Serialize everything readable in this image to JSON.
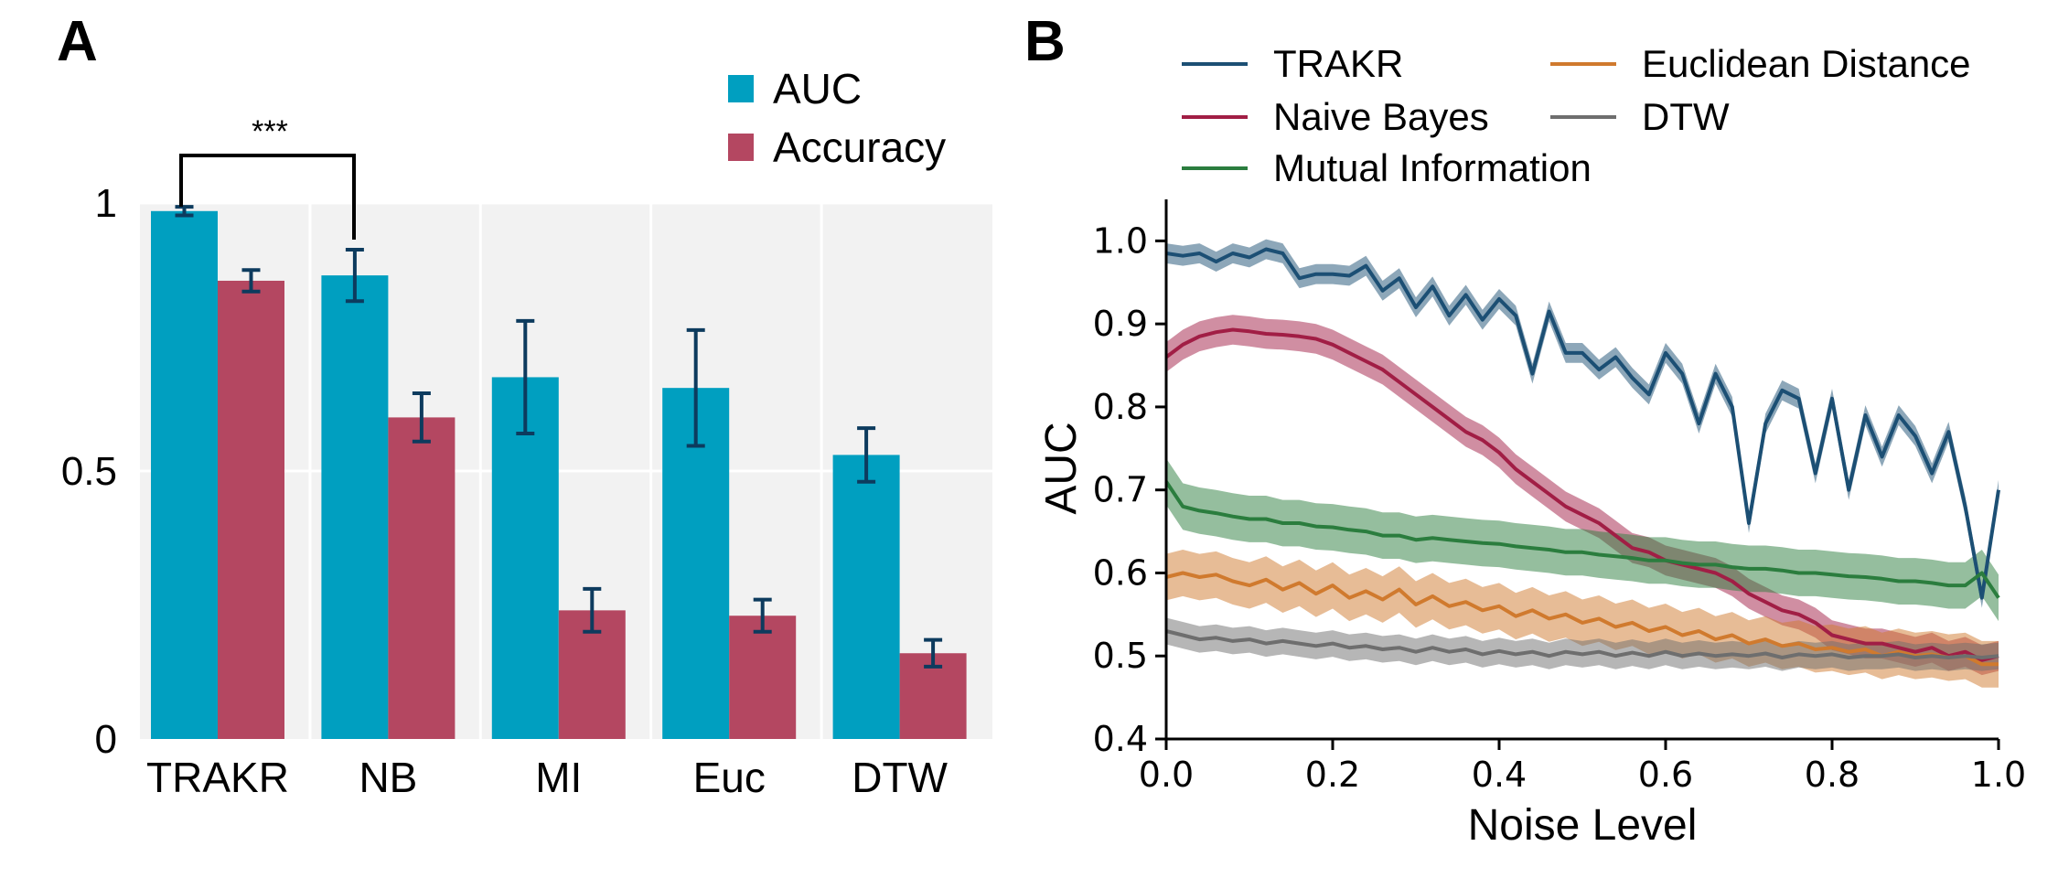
{
  "panels": {
    "a_label": "A",
    "b_label": "B"
  },
  "chart_data": [
    {
      "type": "bar",
      "categories": [
        "TRAKR",
        "NB",
        "MI",
        "Euc",
        "DTW"
      ],
      "series": [
        {
          "name": "AUC",
          "color": "#009fc0",
          "values": [
            0.985,
            0.865,
            0.675,
            0.655,
            0.53
          ],
          "err": [
            0.008,
            0.048,
            0.105,
            0.108,
            0.05
          ]
        },
        {
          "name": "Accuracy",
          "color": "#b44761",
          "values": [
            0.855,
            0.6,
            0.24,
            0.23,
            0.16
          ],
          "err": [
            0.02,
            0.045,
            0.04,
            0.03,
            0.025
          ]
        }
      ],
      "yticks": [
        "0",
        "0.5",
        "1"
      ],
      "ylim": [
        0,
        1
      ],
      "grid": true,
      "legend": "top-right",
      "annotation": "***",
      "error_color": "#0d3b5e"
    },
    {
      "type": "line",
      "xlabel": "Noise Level",
      "ylabel": "AUC",
      "xlim": [
        0,
        1
      ],
      "ylim": [
        0.4,
        1.05
      ],
      "xticks": [
        "0.0",
        "0.2",
        "0.4",
        "0.6",
        "0.8",
        "1.0"
      ],
      "yticks": [
        "0.4",
        "0.5",
        "0.6",
        "0.7",
        "0.8",
        "0.9",
        "1.0"
      ],
      "legend": "top",
      "series": [
        {
          "name": "TRAKR",
          "color": "#1c4f74",
          "band": 0.012,
          "x": [
            0,
            0.02,
            0.04,
            0.06,
            0.08,
            0.1,
            0.12,
            0.14,
            0.16,
            0.18,
            0.2,
            0.22,
            0.24,
            0.26,
            0.28,
            0.3,
            0.32,
            0.34,
            0.36,
            0.38,
            0.4,
            0.42,
            0.44,
            0.46,
            0.48,
            0.5,
            0.52,
            0.54,
            0.56,
            0.58,
            0.6,
            0.62,
            0.64,
            0.66,
            0.68,
            0.7,
            0.72,
            0.74,
            0.76,
            0.78,
            0.8,
            0.82,
            0.84,
            0.86,
            0.88,
            0.9,
            0.92,
            0.94,
            0.96,
            0.98,
            1.0
          ],
          "y": [
            0.985,
            0.982,
            0.985,
            0.975,
            0.985,
            0.98,
            0.99,
            0.985,
            0.955,
            0.96,
            0.96,
            0.958,
            0.97,
            0.94,
            0.955,
            0.92,
            0.945,
            0.91,
            0.935,
            0.905,
            0.93,
            0.91,
            0.84,
            0.915,
            0.865,
            0.865,
            0.845,
            0.86,
            0.835,
            0.815,
            0.865,
            0.84,
            0.78,
            0.84,
            0.8,
            0.66,
            0.78,
            0.82,
            0.81,
            0.72,
            0.81,
            0.7,
            0.79,
            0.74,
            0.79,
            0.765,
            0.72,
            0.77,
            0.68,
            0.57,
            0.7
          ]
        },
        {
          "name": "Naive Bayes",
          "color": "#a11e45",
          "band": 0.018,
          "x": [
            0,
            0.02,
            0.04,
            0.06,
            0.08,
            0.1,
            0.12,
            0.14,
            0.16,
            0.18,
            0.2,
            0.22,
            0.24,
            0.26,
            0.28,
            0.3,
            0.32,
            0.34,
            0.36,
            0.38,
            0.4,
            0.42,
            0.44,
            0.46,
            0.48,
            0.5,
            0.52,
            0.54,
            0.56,
            0.58,
            0.6,
            0.62,
            0.64,
            0.66,
            0.68,
            0.7,
            0.72,
            0.74,
            0.76,
            0.78,
            0.8,
            0.82,
            0.84,
            0.86,
            0.88,
            0.9,
            0.92,
            0.94,
            0.96,
            0.98,
            1.0
          ],
          "y": [
            0.86,
            0.875,
            0.885,
            0.89,
            0.893,
            0.891,
            0.888,
            0.887,
            0.885,
            0.882,
            0.875,
            0.865,
            0.855,
            0.845,
            0.83,
            0.815,
            0.8,
            0.785,
            0.77,
            0.76,
            0.745,
            0.725,
            0.71,
            0.695,
            0.68,
            0.67,
            0.66,
            0.645,
            0.63,
            0.625,
            0.615,
            0.61,
            0.605,
            0.6,
            0.59,
            0.575,
            0.565,
            0.555,
            0.55,
            0.54,
            0.525,
            0.52,
            0.515,
            0.515,
            0.51,
            0.505,
            0.51,
            0.5,
            0.505,
            0.495,
            0.5
          ]
        },
        {
          "name": "Mutual Information",
          "color": "#2b7d3e",
          "band": 0.028,
          "x": [
            0,
            0.02,
            0.04,
            0.06,
            0.08,
            0.1,
            0.12,
            0.14,
            0.16,
            0.18,
            0.2,
            0.22,
            0.24,
            0.26,
            0.28,
            0.3,
            0.32,
            0.34,
            0.36,
            0.38,
            0.4,
            0.42,
            0.44,
            0.46,
            0.48,
            0.5,
            0.52,
            0.54,
            0.56,
            0.58,
            0.6,
            0.62,
            0.64,
            0.66,
            0.68,
            0.7,
            0.72,
            0.74,
            0.76,
            0.78,
            0.8,
            0.82,
            0.84,
            0.86,
            0.88,
            0.9,
            0.92,
            0.94,
            0.96,
            0.98,
            1.0
          ],
          "y": [
            0.71,
            0.68,
            0.675,
            0.672,
            0.668,
            0.665,
            0.665,
            0.66,
            0.66,
            0.656,
            0.655,
            0.652,
            0.65,
            0.645,
            0.645,
            0.64,
            0.642,
            0.64,
            0.638,
            0.636,
            0.635,
            0.632,
            0.63,
            0.628,
            0.625,
            0.625,
            0.622,
            0.62,
            0.618,
            0.615,
            0.615,
            0.612,
            0.61,
            0.61,
            0.607,
            0.605,
            0.605,
            0.603,
            0.6,
            0.6,
            0.598,
            0.596,
            0.595,
            0.593,
            0.59,
            0.59,
            0.588,
            0.585,
            0.585,
            0.6,
            0.57
          ]
        },
        {
          "name": "Euclidean Distance",
          "color": "#d07a2e",
          "band": 0.028,
          "x": [
            0,
            0.02,
            0.04,
            0.06,
            0.08,
            0.1,
            0.12,
            0.14,
            0.16,
            0.18,
            0.2,
            0.22,
            0.24,
            0.26,
            0.28,
            0.3,
            0.32,
            0.34,
            0.36,
            0.38,
            0.4,
            0.42,
            0.44,
            0.46,
            0.48,
            0.5,
            0.52,
            0.54,
            0.56,
            0.58,
            0.6,
            0.62,
            0.64,
            0.66,
            0.68,
            0.7,
            0.72,
            0.74,
            0.76,
            0.78,
            0.8,
            0.82,
            0.84,
            0.86,
            0.88,
            0.9,
            0.92,
            0.94,
            0.96,
            0.98,
            1.0
          ],
          "y": [
            0.595,
            0.6,
            0.595,
            0.598,
            0.59,
            0.585,
            0.592,
            0.58,
            0.588,
            0.575,
            0.585,
            0.57,
            0.578,
            0.568,
            0.58,
            0.562,
            0.572,
            0.56,
            0.565,
            0.555,
            0.56,
            0.548,
            0.555,
            0.545,
            0.55,
            0.54,
            0.545,
            0.535,
            0.54,
            0.53,
            0.535,
            0.525,
            0.53,
            0.52,
            0.525,
            0.515,
            0.52,
            0.512,
            0.515,
            0.508,
            0.51,
            0.505,
            0.508,
            0.5,
            0.505,
            0.5,
            0.502,
            0.498,
            0.5,
            0.49,
            0.49
          ]
        },
        {
          "name": "DTW",
          "color": "#6e6e6e",
          "band": 0.016,
          "x": [
            0,
            0.02,
            0.04,
            0.06,
            0.08,
            0.1,
            0.12,
            0.14,
            0.16,
            0.18,
            0.2,
            0.22,
            0.24,
            0.26,
            0.28,
            0.3,
            0.32,
            0.34,
            0.36,
            0.38,
            0.4,
            0.42,
            0.44,
            0.46,
            0.48,
            0.5,
            0.52,
            0.54,
            0.56,
            0.58,
            0.6,
            0.62,
            0.64,
            0.66,
            0.68,
            0.7,
            0.72,
            0.74,
            0.76,
            0.78,
            0.8,
            0.82,
            0.84,
            0.86,
            0.88,
            0.9,
            0.92,
            0.94,
            0.96,
            0.98,
            1.0
          ],
          "y": [
            0.53,
            0.525,
            0.52,
            0.522,
            0.518,
            0.52,
            0.515,
            0.518,
            0.515,
            0.512,
            0.515,
            0.51,
            0.512,
            0.508,
            0.51,
            0.505,
            0.51,
            0.505,
            0.508,
            0.502,
            0.506,
            0.502,
            0.505,
            0.5,
            0.505,
            0.502,
            0.505,
            0.5,
            0.504,
            0.5,
            0.505,
            0.5,
            0.503,
            0.5,
            0.502,
            0.5,
            0.503,
            0.498,
            0.502,
            0.5,
            0.502,
            0.498,
            0.5,
            0.5,
            0.502,
            0.498,
            0.5,
            0.498,
            0.5,
            0.498,
            0.5
          ]
        }
      ]
    }
  ]
}
